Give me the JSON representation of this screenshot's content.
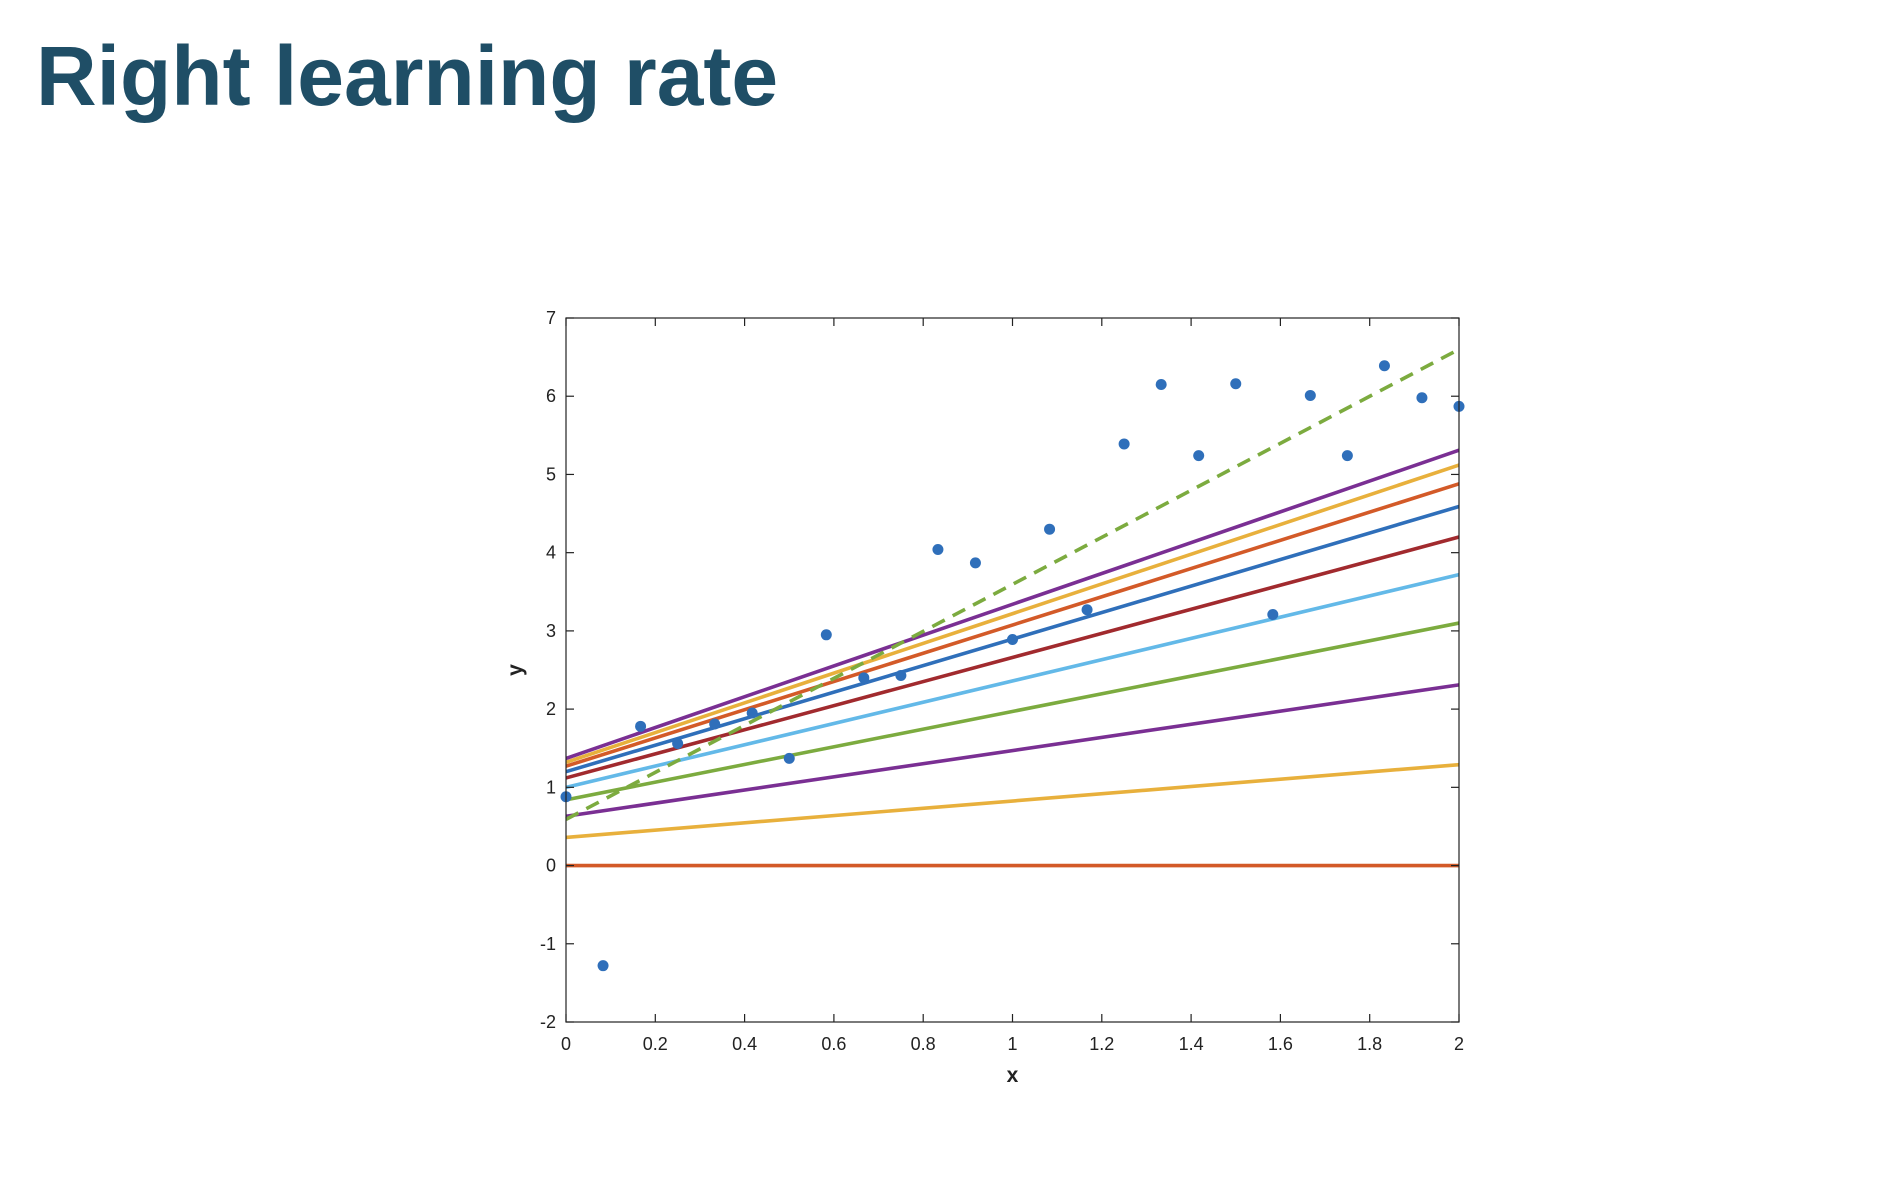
{
  "slide": {
    "title": "Right learning rate"
  },
  "chart_data": {
    "type": "scatter",
    "title": "",
    "xlabel": "x",
    "ylabel": "y",
    "xlim": [
      0,
      2
    ],
    "ylim": [
      -2,
      7
    ],
    "grid": false,
    "legend": "none",
    "xticks": [
      "0",
      "0.2",
      "0.4",
      "0.6",
      "0.8",
      "1",
      "1.2",
      "1.4",
      "1.6",
      "1.8",
      "2"
    ],
    "yticks": [
      "-2",
      "-1",
      "0",
      "1",
      "2",
      "3",
      "4",
      "5",
      "6",
      "7"
    ],
    "points": {
      "color": "#2f6fba",
      "x": [
        0,
        0.083,
        0.167,
        0.25,
        0.333,
        0.417,
        0.5,
        0.583,
        0.667,
        0.75,
        0.833,
        0.917,
        1.0,
        1.083,
        1.167,
        1.25,
        1.333,
        1.417,
        1.5,
        1.583,
        1.667,
        1.75,
        1.833,
        1.917,
        2.0
      ],
      "y": [
        0.88,
        -1.28,
        1.78,
        1.56,
        1.81,
        1.95,
        1.37,
        2.95,
        2.4,
        2.43,
        4.04,
        3.87,
        2.89,
        4.3,
        3.27,
        5.39,
        6.15,
        5.24,
        6.16,
        3.21,
        6.01,
        5.24,
        6.39,
        5.98,
        5.87
      ]
    },
    "series": [
      {
        "color": "#d35a28",
        "style": "solid",
        "x": [
          0,
          2
        ],
        "y": [
          0,
          0
        ]
      },
      {
        "color": "#e8b03c",
        "style": "solid",
        "x": [
          0,
          2
        ],
        "y": [
          0.36,
          1.29
        ]
      },
      {
        "color": "#7a2f93",
        "style": "solid",
        "x": [
          0,
          2
        ],
        "y": [
          0.63,
          2.31
        ]
      },
      {
        "color": "#7cab3f",
        "style": "solid",
        "x": [
          0,
          2
        ],
        "y": [
          0.84,
          3.1
        ]
      },
      {
        "color": "#63b9e8",
        "style": "solid",
        "x": [
          0,
          2
        ],
        "y": [
          1.0,
          3.72
        ]
      },
      {
        "color": "#a12a2e",
        "style": "solid",
        "x": [
          0,
          2
        ],
        "y": [
          1.12,
          4.2
        ]
      },
      {
        "color": "#2f6fba",
        "style": "solid",
        "x": [
          0,
          2
        ],
        "y": [
          1.2,
          4.59
        ]
      },
      {
        "color": "#d35a28",
        "style": "solid",
        "x": [
          0,
          2
        ],
        "y": [
          1.27,
          4.88
        ]
      },
      {
        "color": "#e8b03c",
        "style": "solid",
        "x": [
          0,
          2
        ],
        "y": [
          1.32,
          5.12
        ]
      },
      {
        "color": "#7a2f93",
        "style": "solid",
        "x": [
          0,
          2
        ],
        "y": [
          1.37,
          5.31
        ]
      },
      {
        "color": "#7cab3f",
        "style": "dashed",
        "x": [
          0,
          2
        ],
        "y": [
          0.59,
          6.6
        ]
      }
    ]
  }
}
